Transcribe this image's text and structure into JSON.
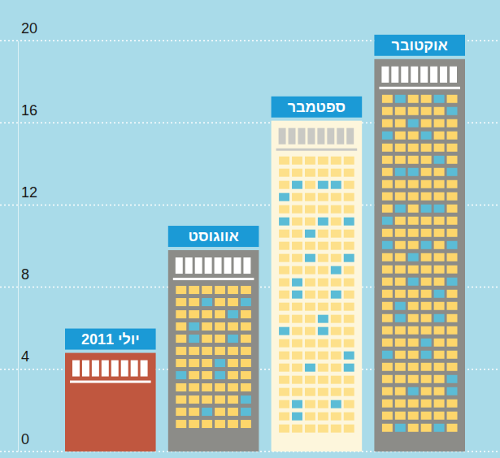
{
  "chart_data": {
    "type": "bar",
    "categories": [
      "יולי 2011",
      "אווגוסט",
      "ספטמבר",
      "אוקטובר"
    ],
    "values": [
      4.8,
      9.8,
      16.1,
      19.1
    ],
    "colors": [
      "#c0573f",
      "#8c8c88",
      "#fdf6dc",
      "#8c8c88"
    ],
    "ylim": [
      0,
      20
    ],
    "yticks": [
      0,
      4,
      8,
      12,
      16,
      20
    ],
    "grid": true
  }
}
